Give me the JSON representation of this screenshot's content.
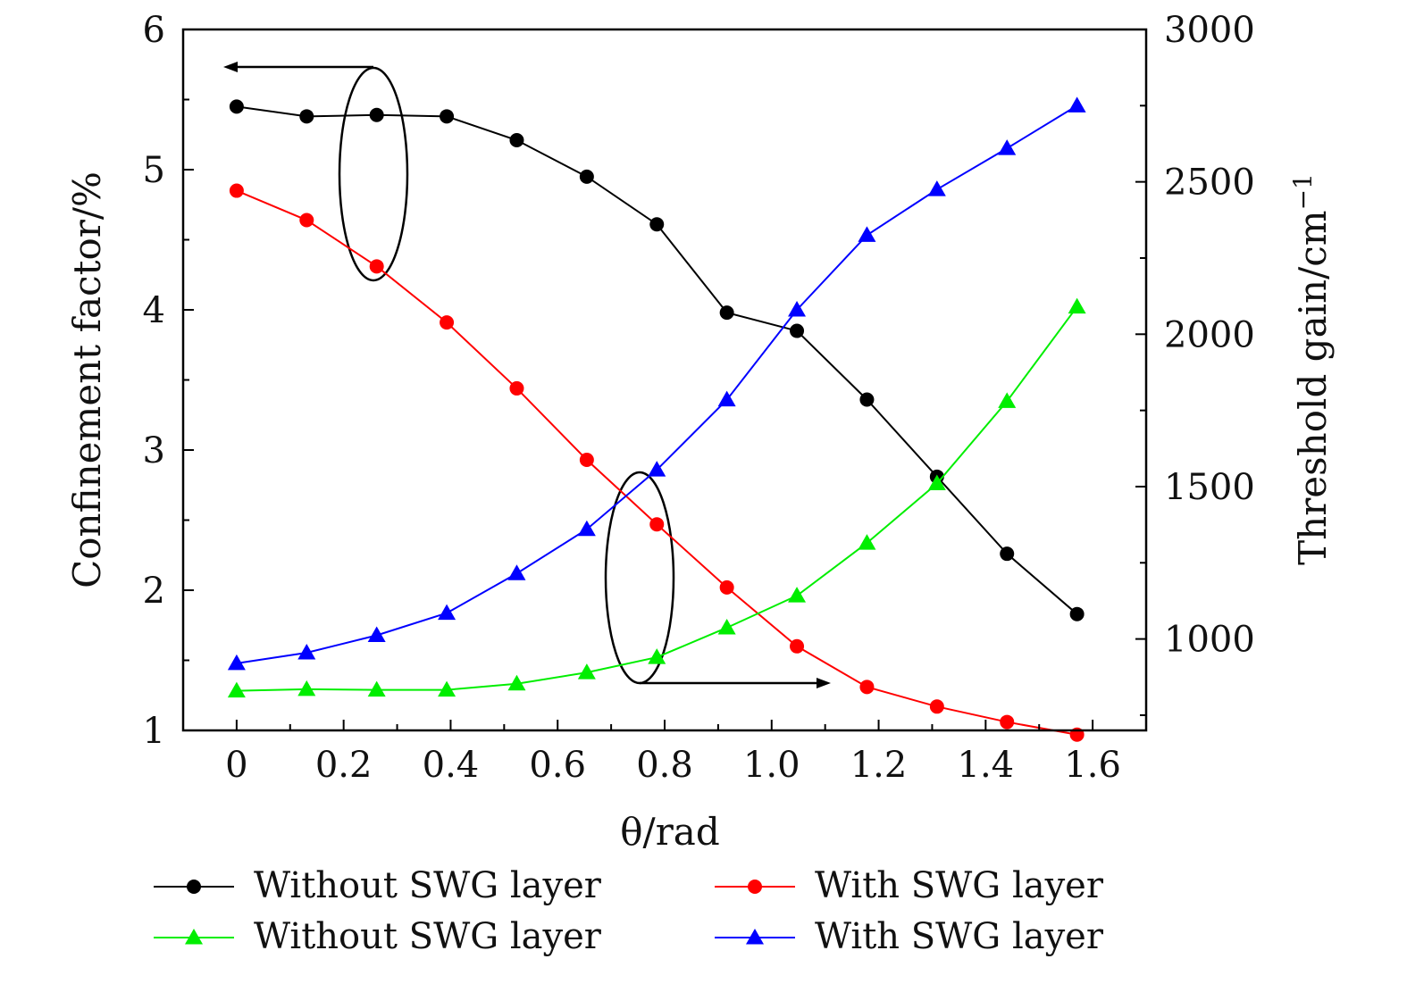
{
  "chart_data": {
    "type": "line",
    "x": [
      0,
      0.1309,
      0.2618,
      0.3927,
      0.5236,
      0.6545,
      0.7854,
      0.9163,
      1.0472,
      1.1781,
      1.309,
      1.4399,
      1.5708
    ],
    "xlabel": "θ/rad",
    "xlim": [
      -0.1,
      1.7
    ],
    "xticks": [
      0,
      0.2,
      0.4,
      0.6,
      0.8,
      1.0,
      1.2,
      1.4,
      1.6
    ],
    "xtick_labels": [
      "0",
      "0.2",
      "0.4",
      "0.6",
      "0.8",
      "1.0",
      "1.2",
      "1.4",
      "1.6"
    ],
    "ylabel_left": "Confinement factor/%",
    "ylim_left": [
      1,
      6
    ],
    "yticks_left": [
      "1",
      "2",
      "3",
      "4",
      "5",
      "6"
    ],
    "ylabel_right": "Threshold gain/cm",
    "ylabel_right_sup": "−1",
    "ylim_right": [
      700,
      3000
    ],
    "yticks_right": [
      "1000",
      "1500",
      "2000",
      "2500",
      "3000"
    ],
    "grid": false,
    "legend_position": "bottom",
    "series": [
      {
        "name": "Without SWG layer",
        "axis": "left",
        "marker": "circle",
        "color": "#000000",
        "values": [
          5.45,
          5.38,
          5.39,
          5.38,
          5.21,
          4.95,
          4.61,
          3.98,
          3.85,
          3.36,
          2.81,
          2.26,
          1.83
        ]
      },
      {
        "name": "With SWG layer",
        "axis": "left",
        "marker": "circle",
        "color": "#ff0000",
        "values": [
          4.85,
          4.64,
          4.31,
          3.91,
          3.44,
          2.93,
          2.47,
          2.02,
          1.6,
          1.31,
          1.17,
          1.06,
          0.97
        ]
      },
      {
        "name": "Without SWG layer",
        "axis": "right",
        "marker": "triangle",
        "color": "#00ee00",
        "values": [
          830,
          835,
          833,
          833,
          853,
          890,
          940,
          1037,
          1142,
          1315,
          1510,
          1780,
          2090
        ]
      },
      {
        "name": "With SWG layer",
        "axis": "right",
        "marker": "triangle",
        "color": "#0000ff",
        "values": [
          920,
          955,
          1012,
          1085,
          1215,
          1360,
          1555,
          1785,
          2080,
          2325,
          2475,
          2610,
          2750
        ]
      }
    ]
  }
}
